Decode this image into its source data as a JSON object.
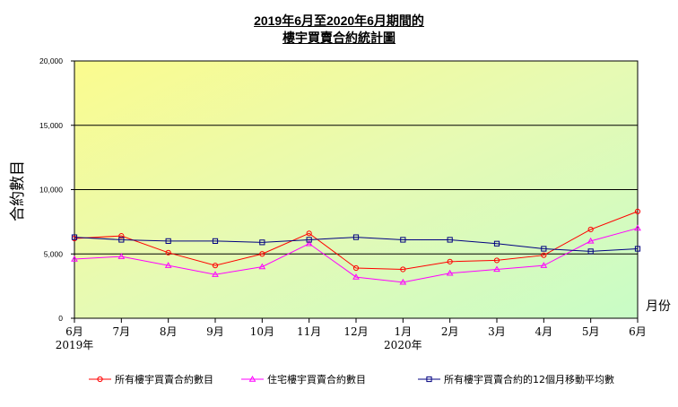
{
  "title_lines": [
    "2019年6月至2020年6月期間的",
    "樓宇買賣合約統計圖"
  ],
  "chart_data": {
    "type": "line",
    "title": "2019年6月至2020年6月期間的 樓宇買賣合約統計圖",
    "ylabel": "合約數目",
    "xlabel": "月份",
    "ylim": [
      0,
      20000
    ],
    "y_ticks": [
      "0",
      "5,000",
      "10,000",
      "15,000",
      "20,000"
    ],
    "y_tick_values": [
      0,
      5000,
      10000,
      15000,
      20000
    ],
    "categories": [
      "6月",
      "7月",
      "8月",
      "9月",
      "10月",
      "11月",
      "12月",
      "1月",
      "2月",
      "3月",
      "4月",
      "5月",
      "6月"
    ],
    "year_labels": [
      {
        "category_index": 0,
        "label": "2019年"
      },
      {
        "category_index": 7,
        "label": "2020年"
      }
    ],
    "series": [
      {
        "name": "所有樓宇買賣合約數目",
        "color": "#ff0000",
        "marker": "circle",
        "values": [
          6200,
          6400,
          5100,
          4100,
          5000,
          6600,
          3900,
          3800,
          4400,
          4500,
          4900,
          6900,
          8300
        ]
      },
      {
        "name": "住宅樓宇買賣合約數目",
        "color": "#ff00ff",
        "marker": "triangle",
        "values": [
          4600,
          4800,
          4100,
          3400,
          4000,
          5800,
          3200,
          2800,
          3500,
          3800,
          4100,
          6000,
          7000
        ]
      },
      {
        "name": "所有樓宇買賣合約的12個月移動平均數",
        "color": "#000080",
        "marker": "square",
        "values": [
          6300,
          6100,
          6000,
          6000,
          5900,
          6100,
          6300,
          6100,
          6100,
          5800,
          5400,
          5200,
          5400
        ]
      }
    ]
  }
}
